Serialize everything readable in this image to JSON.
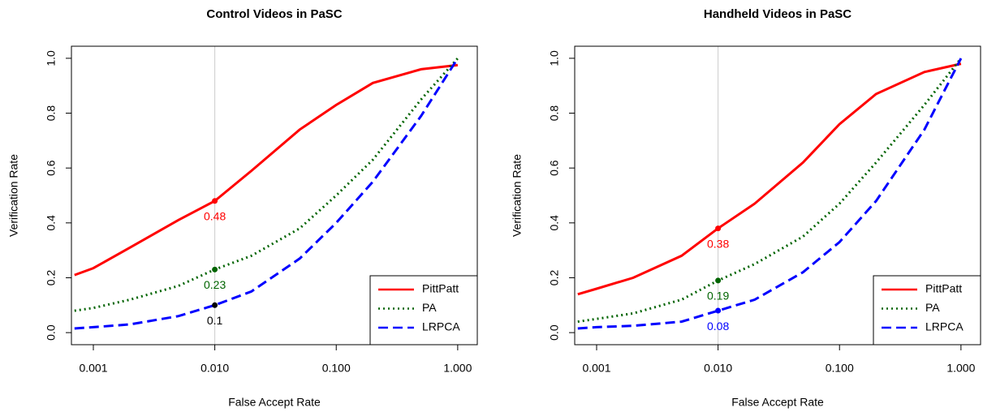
{
  "chart_data": [
    {
      "type": "line",
      "title": "Control Videos in PaSC",
      "xlabel": "False Accept Rate",
      "ylabel": "Verification Rate",
      "xscale": "log",
      "xlim": [
        0.00066,
        1.45
      ],
      "ylim": [
        -0.044,
        1.044
      ],
      "xticks": [
        0.001,
        {
          "value": 0.01,
          "label": "0.010"
        },
        {
          "value": 0.1,
          "label": "0.100"
        },
        {
          "value": 1,
          "label": "1.000"
        }
      ],
      "yticks": [
        {
          "value": 0,
          "label": "0.0"
        },
        0.2,
        0.4,
        0.6,
        0.8,
        {
          "value": 1,
          "label": "1.0"
        }
      ],
      "vline": 0.01,
      "legend": "bottom-right",
      "x": [
        0.0007,
        0.001,
        0.002,
        0.005,
        0.01,
        0.02,
        0.05,
        0.1,
        0.2,
        0.5,
        1.0
      ],
      "series": [
        {
          "name": "PittPatt",
          "color": "#ff0000",
          "dash": "solid",
          "values": [
            0.21,
            0.235,
            0.31,
            0.41,
            0.48,
            0.59,
            0.74,
            0.83,
            0.91,
            0.96,
            0.975
          ]
        },
        {
          "name": "PA",
          "color": "#006400",
          "dash": "dotted",
          "values": [
            0.08,
            0.09,
            0.12,
            0.17,
            0.23,
            0.28,
            0.38,
            0.5,
            0.63,
            0.85,
            1.0
          ]
        },
        {
          "name": "LRPCA",
          "color": "#0000ff",
          "dash": "dashed",
          "values": [
            0.015,
            0.02,
            0.03,
            0.06,
            0.1,
            0.15,
            0.27,
            0.4,
            0.55,
            0.79,
            1.0
          ]
        }
      ],
      "annotations": [
        {
          "x": 0.01,
          "y": 0.48,
          "label": "0.48",
          "color": "#ff0000"
        },
        {
          "x": 0.01,
          "y": 0.23,
          "label": "0.23",
          "color": "#006400"
        },
        {
          "x": 0.01,
          "y": 0.1,
          "label": "0.1",
          "color": "#000000"
        }
      ]
    },
    {
      "type": "line",
      "title": "Handheld Videos in PaSC",
      "xlabel": "False Accept Rate",
      "ylabel": "Verification Rate",
      "xscale": "log",
      "xlim": [
        0.00066,
        1.45
      ],
      "ylim": [
        -0.044,
        1.044
      ],
      "xticks": [
        0.001,
        {
          "value": 0.01,
          "label": "0.010"
        },
        {
          "value": 0.1,
          "label": "0.100"
        },
        {
          "value": 1,
          "label": "1.000"
        }
      ],
      "yticks": [
        {
          "value": 0,
          "label": "0.0"
        },
        0.2,
        0.4,
        0.6,
        0.8,
        {
          "value": 1,
          "label": "1.0"
        }
      ],
      "vline": 0.01,
      "legend": "bottom-right",
      "x": [
        0.0007,
        0.001,
        0.002,
        0.005,
        0.01,
        0.02,
        0.05,
        0.1,
        0.2,
        0.5,
        1.0
      ],
      "series": [
        {
          "name": "PittPatt",
          "color": "#ff0000",
          "dash": "solid",
          "values": [
            0.14,
            0.16,
            0.2,
            0.28,
            0.38,
            0.47,
            0.62,
            0.76,
            0.87,
            0.95,
            0.98
          ]
        },
        {
          "name": "PA",
          "color": "#006400",
          "dash": "dotted",
          "values": [
            0.04,
            0.05,
            0.07,
            0.12,
            0.19,
            0.25,
            0.35,
            0.47,
            0.62,
            0.83,
            1.0
          ]
        },
        {
          "name": "LRPCA",
          "color": "#0000ff",
          "dash": "dashed",
          "values": [
            0.015,
            0.02,
            0.025,
            0.04,
            0.08,
            0.12,
            0.22,
            0.33,
            0.48,
            0.74,
            1.0
          ]
        }
      ],
      "annotations": [
        {
          "x": 0.01,
          "y": 0.38,
          "label": "0.38",
          "color": "#ff0000"
        },
        {
          "x": 0.01,
          "y": 0.19,
          "label": "0.19",
          "color": "#006400"
        },
        {
          "x": 0.01,
          "y": 0.08,
          "label": "0.08",
          "color": "#0000ff"
        }
      ]
    }
  ]
}
